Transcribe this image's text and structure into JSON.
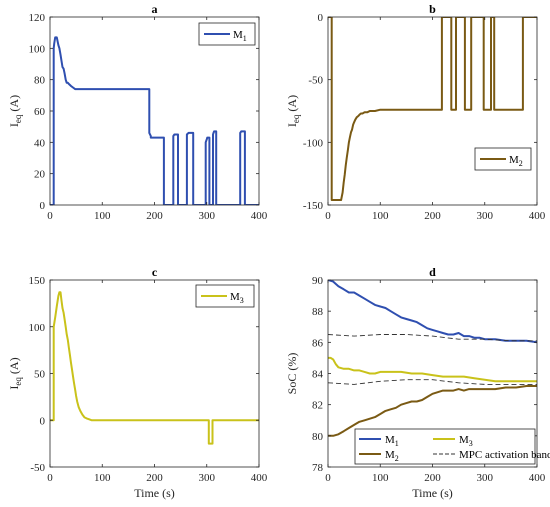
{
  "colors": {
    "M1": "#2f4fb0",
    "M2": "#7a5a14",
    "M3": "#c9c21a",
    "band": "#333333"
  },
  "chart_data": [
    {
      "type": "line",
      "title": "a",
      "xlabel": "",
      "ylabel": "I",
      "ylabel_sub": "eq",
      "ylabel_unit": "(A)",
      "xlim": [
        0,
        400
      ],
      "ylim": [
        0,
        120
      ],
      "xticks": [
        0,
        100,
        200,
        300,
        400
      ],
      "yticks": [
        0,
        20,
        40,
        60,
        80,
        100,
        120
      ],
      "series": [
        {
          "name": "M",
          "sub": "1",
          "color_key": "M1",
          "x": [
            0,
            7,
            7,
            8,
            10,
            13,
            16,
            18,
            20,
            22,
            24,
            26,
            28,
            30,
            32,
            34,
            37,
            40,
            44,
            48,
            52,
            56,
            190,
            190,
            193,
            193,
            203,
            203,
            218,
            218,
            236,
            236,
            238,
            245,
            245,
            262,
            262,
            265,
            274,
            274,
            298,
            298,
            300,
            301,
            302,
            305,
            305,
            312,
            312,
            313,
            314,
            318,
            318,
            364,
            364,
            366,
            373,
            373,
            400
          ],
          "y": [
            0,
            0,
            100,
            103,
            107,
            107,
            102,
            100,
            96,
            92,
            88,
            87,
            84,
            80,
            78,
            78,
            77,
            76,
            75,
            74,
            74,
            74,
            74,
            46,
            44,
            43,
            43,
            43,
            43,
            0,
            0,
            44,
            45,
            45,
            0,
            0,
            45,
            46,
            46,
            0,
            0,
            40,
            42,
            43,
            43,
            43,
            0,
            0,
            45,
            46,
            47,
            47,
            0,
            0,
            46,
            47,
            47,
            0,
            0
          ]
        }
      ],
      "legend": "top-right"
    },
    {
      "type": "line",
      "title": "b",
      "xlabel": "",
      "ylabel": "I",
      "ylabel_sub": "eq",
      "ylabel_unit": "(A)",
      "xlim": [
        0,
        400
      ],
      "ylim": [
        -150,
        0
      ],
      "xticks": [
        0,
        100,
        200,
        300,
        400
      ],
      "yticks": [
        -150,
        -100,
        -50,
        0
      ],
      "series": [
        {
          "name": "M",
          "sub": "2",
          "color_key": "M2",
          "x": [
            0,
            7,
            7,
            10,
            15,
            20,
            25,
            28,
            30,
            32,
            34,
            36,
            38,
            40,
            42,
            44,
            46,
            48,
            50,
            52,
            55,
            58,
            60,
            63,
            66,
            70,
            75,
            80,
            90,
            100,
            218,
            218,
            236,
            236,
            245,
            245,
            262,
            262,
            274,
            274,
            298,
            298,
            312,
            312,
            318,
            318,
            364,
            364,
            373,
            373,
            400
          ],
          "y": [
            0,
            0,
            -146,
            -146,
            -146,
            -146,
            -146,
            -140,
            -132,
            -126,
            -118,
            -112,
            -106,
            -100,
            -96,
            -92,
            -90,
            -86,
            -84,
            -82,
            -80,
            -79,
            -78,
            -77,
            -77,
            -76,
            -76,
            -75,
            -75,
            -74,
            -74,
            0,
            0,
            -74,
            -74,
            0,
            0,
            -74,
            -74,
            0,
            0,
            -74,
            -74,
            0,
            0,
            -74,
            -74,
            -74,
            -74,
            0,
            0
          ]
        }
      ],
      "legend": "bottom-right"
    },
    {
      "type": "line",
      "title": "c",
      "xlabel": "Time (s)",
      "ylabel": "I",
      "ylabel_sub": "eq",
      "ylabel_unit": "(A)",
      "xlim": [
        0,
        400
      ],
      "ylim": [
        -50,
        150
      ],
      "xticks": [
        0,
        100,
        200,
        300,
        400
      ],
      "yticks": [
        -50,
        0,
        50,
        100,
        150
      ],
      "series": [
        {
          "name": "M",
          "sub": "3",
          "color_key": "M3",
          "x": [
            0,
            7,
            7,
            10,
            13,
            16,
            18,
            20,
            22,
            24,
            26,
            28,
            30,
            32,
            34,
            36,
            38,
            40,
            42,
            44,
            46,
            48,
            50,
            52,
            55,
            58,
            62,
            66,
            70,
            75,
            80,
            90,
            100,
            304,
            304,
            311,
            311,
            400
          ],
          "y": [
            0,
            0,
            100,
            110,
            122,
            133,
            137,
            137,
            128,
            120,
            115,
            108,
            100,
            92,
            86,
            78,
            70,
            62,
            55,
            47,
            40,
            33,
            26,
            20,
            14,
            10,
            6,
            3,
            2,
            1,
            0,
            0,
            0,
            0,
            -25,
            -25,
            0,
            0
          ]
        }
      ],
      "legend": "top-right"
    },
    {
      "type": "line",
      "title": "d",
      "xlabel": "Time (s)",
      "ylabel": "SoC (%)",
      "xlim": [
        0,
        400
      ],
      "ylim": [
        78,
        90
      ],
      "xticks": [
        0,
        100,
        200,
        300,
        400
      ],
      "yticks": [
        78,
        80,
        82,
        84,
        86,
        88,
        90
      ],
      "series": [
        {
          "name": "M",
          "sub": "1",
          "color_key": "M1",
          "style": "solid",
          "x": [
            0,
            10,
            20,
            30,
            40,
            50,
            60,
            70,
            80,
            90,
            100,
            110,
            120,
            130,
            140,
            150,
            160,
            170,
            180,
            190,
            200,
            210,
            220,
            230,
            240,
            250,
            260,
            270,
            280,
            290,
            300,
            320,
            340,
            360,
            380,
            400
          ],
          "y": [
            90.0,
            89.9,
            89.6,
            89.4,
            89.2,
            89.2,
            89.0,
            88.8,
            88.6,
            88.4,
            88.3,
            88.2,
            88.0,
            87.8,
            87.6,
            87.5,
            87.4,
            87.3,
            87.1,
            86.9,
            86.8,
            86.7,
            86.6,
            86.5,
            86.5,
            86.6,
            86.4,
            86.4,
            86.3,
            86.3,
            86.2,
            86.2,
            86.1,
            86.1,
            86.1,
            86.0
          ]
        },
        {
          "name": "M",
          "sub": "3",
          "color_key": "M3",
          "style": "solid",
          "x": [
            0,
            5,
            10,
            15,
            20,
            30,
            40,
            50,
            60,
            70,
            80,
            90,
            100,
            120,
            140,
            160,
            180,
            200,
            220,
            240,
            260,
            280,
            300,
            320,
            340,
            360,
            380,
            400
          ],
          "y": [
            85.0,
            85.0,
            84.9,
            84.6,
            84.4,
            84.3,
            84.3,
            84.2,
            84.2,
            84.1,
            84.0,
            84.0,
            84.1,
            84.1,
            84.1,
            84.0,
            84.0,
            83.9,
            83.8,
            83.8,
            83.8,
            83.7,
            83.6,
            83.5,
            83.5,
            83.5,
            83.5,
            83.5
          ]
        },
        {
          "name": "M",
          "sub": "2",
          "color_key": "M2",
          "style": "solid",
          "x": [
            0,
            10,
            20,
            30,
            40,
            50,
            60,
            70,
            80,
            90,
            100,
            110,
            120,
            130,
            140,
            150,
            160,
            170,
            180,
            190,
            200,
            210,
            220,
            230,
            240,
            250,
            260,
            270,
            280,
            300,
            320,
            340,
            360,
            380,
            400
          ],
          "y": [
            80.0,
            80.0,
            80.1,
            80.3,
            80.5,
            80.7,
            80.9,
            81.0,
            81.1,
            81.2,
            81.4,
            81.6,
            81.7,
            81.8,
            82.0,
            82.1,
            82.2,
            82.2,
            82.3,
            82.5,
            82.7,
            82.8,
            82.9,
            82.9,
            82.9,
            83.0,
            82.9,
            83.0,
            83.0,
            83.0,
            83.0,
            83.1,
            83.1,
            83.2,
            83.2
          ]
        },
        {
          "name": "MPC activation band",
          "color_key": "band",
          "style": "dashed",
          "x": [
            0,
            50,
            100,
            150,
            200,
            250,
            300,
            350,
            400
          ],
          "y": [
            86.5,
            86.4,
            86.5,
            86.5,
            86.4,
            86.2,
            86.2,
            86.1,
            86.1
          ]
        },
        {
          "name": "",
          "color_key": "band",
          "style": "dashed",
          "x": [
            0,
            50,
            100,
            150,
            200,
            250,
            300,
            350,
            400
          ],
          "y": [
            83.4,
            83.3,
            83.5,
            83.6,
            83.6,
            83.4,
            83.3,
            83.3,
            83.3
          ]
        }
      ],
      "legend": "bottom"
    }
  ]
}
